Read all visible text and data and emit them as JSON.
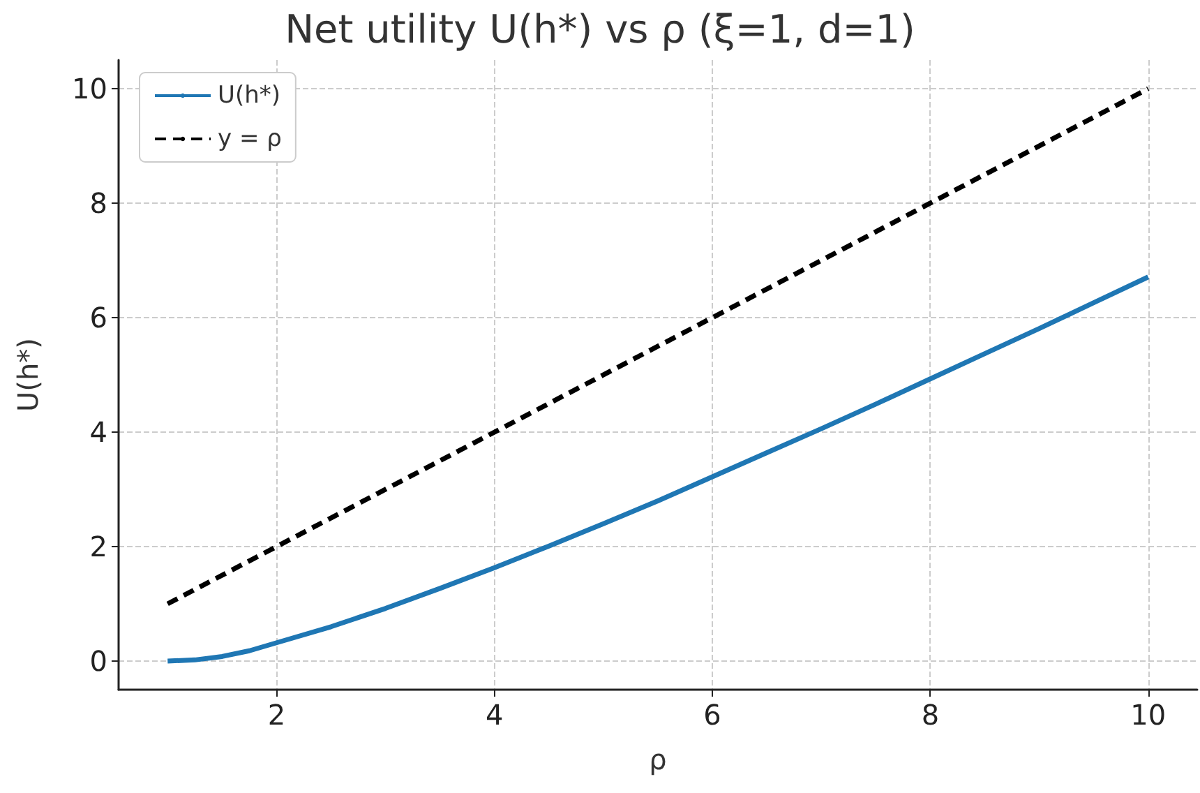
{
  "chart_data": {
    "type": "line",
    "title": "Net utility U(h*) vs ρ (ξ=1, d=1)",
    "xlabel": "ρ",
    "ylabel": "U(h*)",
    "xlim": [
      0.55,
      10.45
    ],
    "xticks": [
      2,
      4,
      6,
      8,
      10
    ],
    "ylim": [
      -0.5,
      10.5
    ],
    "yticks": [
      0,
      2,
      4,
      6,
      8,
      10
    ],
    "grid": true,
    "legend": "top left",
    "marker": "none",
    "series": [
      {
        "name": "U(h*)",
        "color": "#1f77b4",
        "line_style": "solid",
        "x": [
          1,
          1.25,
          1.5,
          1.75,
          2,
          2.5,
          3,
          3.5,
          4,
          4.5,
          5,
          5.5,
          6,
          6.5,
          7,
          7.5,
          8,
          8.5,
          9,
          9.5,
          10
        ],
        "values": [
          0,
          0.02,
          0.08,
          0.18,
          0.32,
          0.6,
          0.92,
          1.27,
          1.63,
          2.01,
          2.4,
          2.8,
          3.22,
          3.64,
          4.06,
          4.49,
          4.93,
          5.37,
          5.81,
          6.26,
          6.71
        ]
      },
      {
        "name": "y = ρ",
        "color": "#000000",
        "line_style": "dashed",
        "x": [
          1,
          10
        ],
        "values": [
          1,
          10
        ]
      }
    ]
  }
}
